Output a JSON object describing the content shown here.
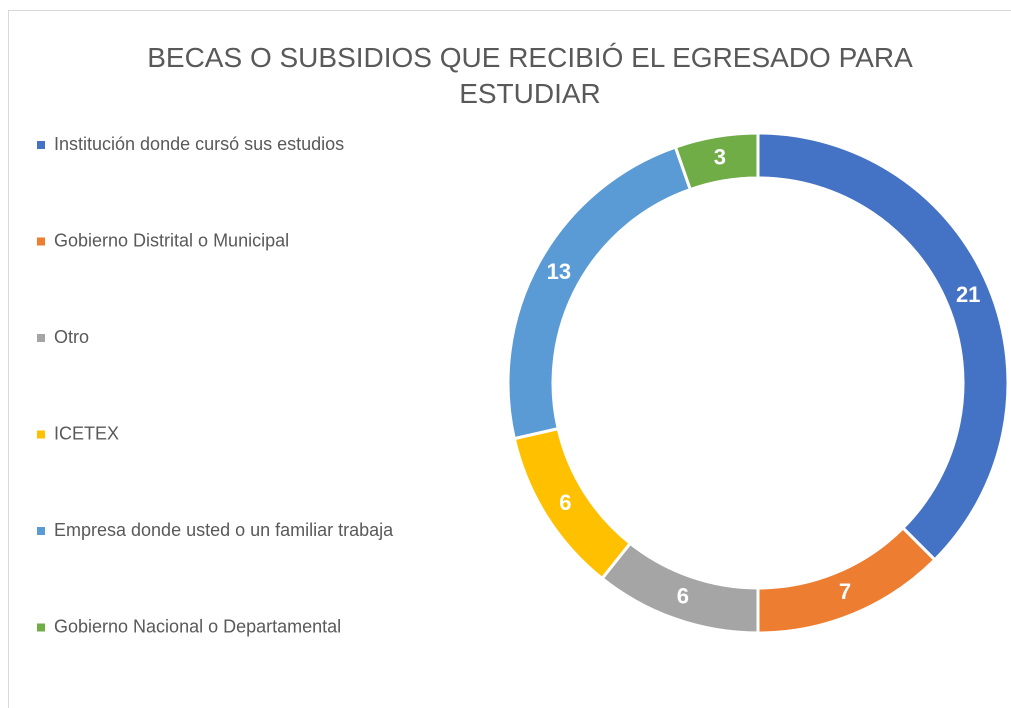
{
  "chart_data": {
    "type": "donut",
    "title": "BECAS O SUBSIDIOS QUE RECIBIÓ EL EGRESADO PARA ESTUDIAR",
    "categories": [
      "Institución donde cursó sus estudios",
      "Gobierno Distrital o Municipal",
      "Otro",
      "ICETEX",
      "Empresa donde usted o un familiar trabaja",
      "Gobierno Nacional o Departamental"
    ],
    "values": [
      21,
      7,
      6,
      6,
      13,
      3
    ],
    "colors": [
      "#4472c4",
      "#ed7d31",
      "#a5a5a5",
      "#ffc000",
      "#5b9bd5",
      "#70ad47"
    ],
    "legend": "left"
  }
}
